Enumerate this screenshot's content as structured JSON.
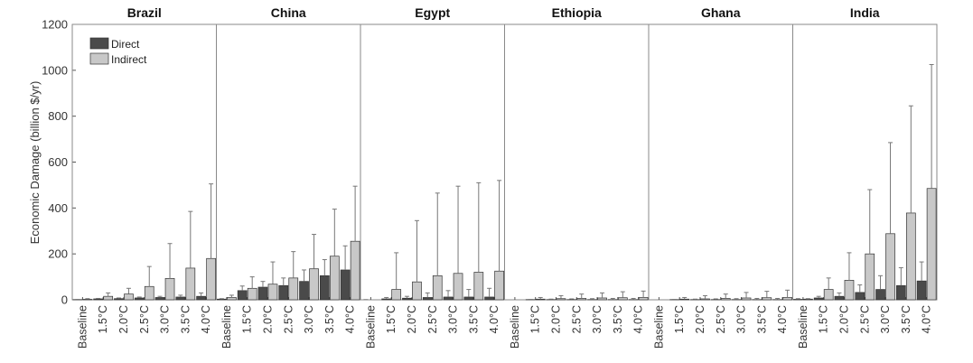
{
  "chart_data": {
    "type": "bar",
    "ylabel": "Economic Damage (billion $/yr)",
    "ylim": [
      0,
      1200
    ],
    "yticks": [
      0,
      200,
      400,
      600,
      800,
      1000,
      1200
    ],
    "categories": [
      "Baseline",
      "1.5°C",
      "2.0°C",
      "2.5°C",
      "3.0°C",
      "3.5°C",
      "4.0°C"
    ],
    "legend": {
      "position": "top-left",
      "items": [
        {
          "label": "Direct",
          "color": "#4a4a4a"
        },
        {
          "label": "Indirect",
          "color": "#c8c8c8"
        }
      ]
    },
    "panels": [
      {
        "title": "Brazil",
        "series": [
          {
            "name": "Direct",
            "values": [
              1,
              4,
              5,
              8,
              10,
              12,
              15
            ],
            "upper": [
              2,
              6,
              8,
              12,
              15,
              20,
              30
            ]
          },
          {
            "name": "Indirect",
            "values": [
              2,
              15,
              25,
              58,
              93,
              138,
              180
            ],
            "upper": [
              5,
              30,
              50,
              145,
              245,
              385,
              505
            ]
          }
        ]
      },
      {
        "title": "China",
        "series": [
          {
            "name": "Direct",
            "values": [
              3,
              40,
              55,
              62,
              80,
              105,
              130
            ],
            "upper": [
              5,
              60,
              80,
              95,
              130,
              175,
              235
            ]
          },
          {
            "name": "Indirect",
            "values": [
              10,
              50,
              68,
              95,
              135,
              190,
              255
            ],
            "upper": [
              20,
              100,
              165,
              210,
              285,
              395,
              495
            ]
          }
        ]
      },
      {
        "title": "Egypt",
        "series": [
          {
            "name": "Direct",
            "values": [
              0,
              4,
              7,
              10,
              12,
              12,
              12
            ],
            "upper": [
              1,
              10,
              15,
              30,
              40,
              45,
              50
            ]
          },
          {
            "name": "Indirect",
            "values": [
              0,
              45,
              78,
              105,
              115,
              120,
              125
            ],
            "upper": [
              0,
              205,
              345,
              465,
              495,
              510,
              520
            ]
          }
        ]
      },
      {
        "title": "Ethiopia",
        "series": [
          {
            "name": "Direct",
            "values": [
              0,
              1,
              1,
              1,
              1,
              1,
              1
            ],
            "upper": [
              0,
              2,
              3,
              4,
              5,
              6,
              6
            ]
          },
          {
            "name": "Indirect",
            "values": [
              0,
              3,
              5,
              6,
              8,
              9,
              10
            ],
            "upper": [
              0,
              10,
              18,
              25,
              30,
              35,
              38
            ]
          }
        ]
      },
      {
        "title": "Ghana",
        "series": [
          {
            "name": "Direct",
            "values": [
              0,
              1,
              1,
              1,
              1,
              1,
              1
            ],
            "upper": [
              0,
              2,
              3,
              4,
              5,
              6,
              6
            ]
          },
          {
            "name": "Indirect",
            "values": [
              0,
              3,
              4,
              6,
              8,
              9,
              10
            ],
            "upper": [
              0,
              10,
              18,
              25,
              32,
              37,
              42
            ]
          }
        ]
      },
      {
        "title": "India",
        "series": [
          {
            "name": "Direct",
            "values": [
              2,
              8,
              15,
              32,
              45,
              62,
              82
            ],
            "upper": [
              5,
              15,
              30,
              65,
              105,
              140,
              165
            ]
          },
          {
            "name": "Indirect",
            "values": [
              3,
              45,
              85,
              200,
              288,
              378,
              485
            ],
            "upper": [
              5,
              95,
              205,
              480,
              685,
              845,
              1025
            ]
          }
        ]
      }
    ]
  }
}
